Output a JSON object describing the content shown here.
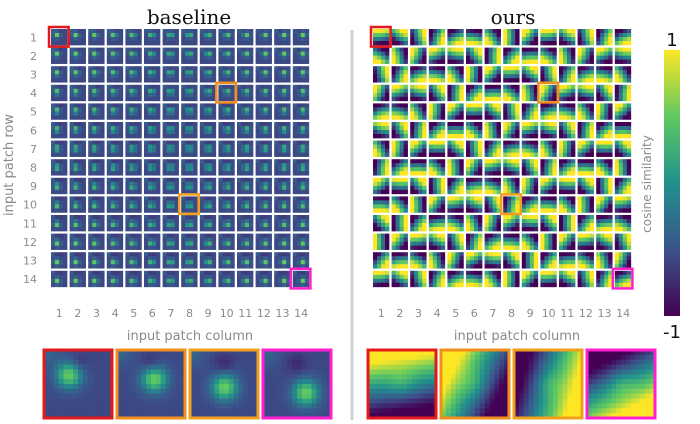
{
  "panels": [
    {
      "id": "baseline",
      "title": "baseline",
      "mode": "gauss"
    },
    {
      "id": "ours",
      "title": "ours",
      "mode": "dir"
    }
  ],
  "axes": {
    "row_label": "input patch row",
    "col_label": "input patch column",
    "ticks": [
      "1",
      "2",
      "3",
      "4",
      "5",
      "6",
      "7",
      "8",
      "9",
      "10",
      "11",
      "12",
      "13",
      "14"
    ]
  },
  "highlights": [
    {
      "row": 1,
      "col": 1,
      "color": "#e31a1c"
    },
    {
      "row": 4,
      "col": 10,
      "color": "#f28e1c"
    },
    {
      "row": 10,
      "col": 8,
      "color": "#f2a01c"
    },
    {
      "row": 14,
      "col": 14,
      "color": "#ff1fd0"
    }
  ],
  "colorbar": {
    "label": "cosine similarity",
    "max_label": "1",
    "min_label": "-1",
    "colormap": "viridis"
  }
}
